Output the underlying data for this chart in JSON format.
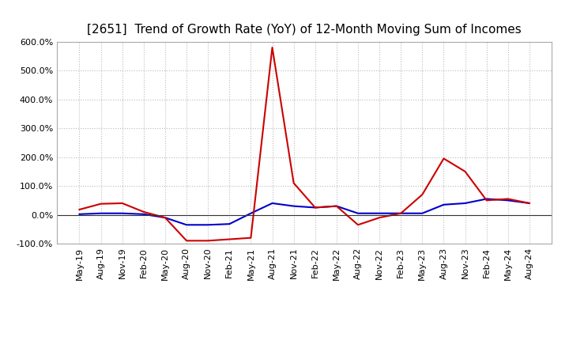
{
  "title": "[2651]  Trend of Growth Rate (YoY) of 12-Month Moving Sum of Incomes",
  "x_labels": [
    "May-19",
    "Aug-19",
    "Nov-19",
    "Feb-20",
    "May-20",
    "Aug-20",
    "Nov-20",
    "Feb-21",
    "May-21",
    "Aug-21",
    "Nov-21",
    "Feb-22",
    "May-22",
    "Aug-22",
    "Nov-22",
    "Feb-23",
    "May-23",
    "Aug-23",
    "Nov-23",
    "Feb-24",
    "May-24",
    "Aug-24"
  ],
  "ordinary_income": [
    2,
    5,
    5,
    2,
    -10,
    -35,
    -35,
    -32,
    5,
    40,
    30,
    25,
    30,
    5,
    5,
    5,
    5,
    35,
    40,
    55,
    50,
    40
  ],
  "net_income": [
    18,
    38,
    40,
    10,
    -10,
    -90,
    -90,
    -85,
    -80,
    580,
    110,
    25,
    30,
    -35,
    -10,
    5,
    70,
    195,
    150,
    50,
    55,
    40
  ],
  "ordinary_color": "#0000cc",
  "net_color": "#cc0000",
  "ylim": [
    -100,
    600
  ],
  "yticks": [
    -100,
    0,
    100,
    200,
    300,
    400,
    500,
    600
  ],
  "background_color": "#ffffff",
  "grid_color": "#bbbbbb",
  "title_fontsize": 11,
  "axis_fontsize": 8,
  "legend_fontsize": 9
}
